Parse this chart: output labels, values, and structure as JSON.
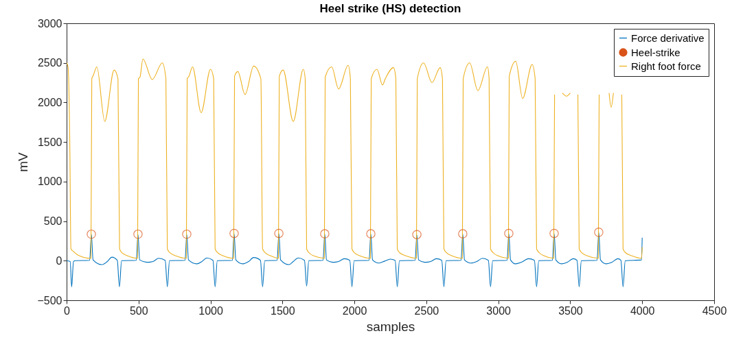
{
  "chart_data": {
    "type": "line",
    "title": "Heel strike (HS) detection",
    "xlabel": "samples",
    "ylabel": "mV",
    "xlim": [
      0,
      4500
    ],
    "xticks": [
      0,
      500,
      1000,
      1500,
      2000,
      2500,
      3000,
      3500,
      4000,
      4500
    ],
    "ylim": [
      -500,
      3000
    ],
    "yticks": [
      -500,
      0,
      500,
      1000,
      1500,
      2000,
      2500,
      3000
    ],
    "grid": false,
    "legend": "top right",
    "series": [
      {
        "name": "Force derivative",
        "type": "line",
        "color": "#0072bd",
        "x": [
          0,
          25,
          35,
          48,
          60,
          160,
          172,
          184,
          245,
          280,
          315,
          352,
          367,
          382,
          484,
          496,
          508,
          560,
          600,
          640,
          685,
          700,
          715,
          823,
          835,
          847,
          905,
          940,
          975,
          1017,
          1032,
          1047,
          1152,
          1164,
          1176,
          1225,
          1265,
          1300,
          1347,
          1362,
          1377,
          1463,
          1475,
          1487,
          1545,
          1575,
          1610,
          1653,
          1668,
          1683,
          1782,
          1794,
          1806,
          1850,
          1890,
          1930,
          1968,
          1983,
          1998,
          2102,
          2114,
          2126,
          2170,
          2210,
          2250,
          2283,
          2298,
          2313,
          2422,
          2434,
          2446,
          2490,
          2530,
          2570,
          2607,
          2622,
          2637,
          2741,
          2753,
          2765,
          2810,
          2850,
          2890,
          2931,
          2946,
          2961,
          3061,
          3073,
          3085,
          3120,
          3160,
          3210,
          3251,
          3266,
          3281,
          3376,
          3388,
          3400,
          3440,
          3480,
          3520,
          3547,
          3562,
          3577,
          3686,
          3698,
          3710,
          3750,
          3790,
          3830,
          3852,
          3867,
          3882,
          3995,
          4000
        ],
        "values": [
          0,
          -10,
          -330,
          -10,
          0,
          5,
          330,
          10,
          -50,
          -15,
          45,
          5,
          -330,
          0,
          5,
          330,
          10,
          -20,
          -10,
          30,
          5,
          -330,
          0,
          5,
          330,
          10,
          -40,
          -10,
          35,
          5,
          -330,
          0,
          5,
          340,
          10,
          -40,
          -10,
          40,
          5,
          -330,
          0,
          5,
          340,
          10,
          -50,
          -10,
          35,
          5,
          -320,
          0,
          5,
          335,
          10,
          -20,
          -10,
          25,
          5,
          -330,
          0,
          5,
          335,
          10,
          -30,
          -5,
          20,
          5,
          -330,
          0,
          5,
          325,
          10,
          -20,
          -10,
          25,
          5,
          -330,
          0,
          5,
          335,
          10,
          -30,
          -10,
          30,
          5,
          -330,
          0,
          5,
          340,
          10,
          -40,
          -20,
          25,
          5,
          -330,
          0,
          5,
          340,
          10,
          -40,
          -20,
          25,
          5,
          -330,
          0,
          5,
          355,
          10,
          -40,
          -20,
          25,
          5,
          -330,
          0,
          10,
          290
        ]
      },
      {
        "name": "Heel-strike",
        "type": "scatter",
        "marker": "circle",
        "color": "#d95319",
        "x": [
          172,
          496,
          835,
          1164,
          1475,
          1794,
          2114,
          2434,
          2753,
          3073,
          3388,
          3698
        ],
        "values": [
          335,
          335,
          335,
          345,
          345,
          340,
          340,
          330,
          340,
          345,
          345,
          360
        ]
      },
      {
        "name": "Right foot force",
        "type": "line",
        "color": "#edb120",
        "x": [
          0,
          10,
          22,
          30,
          45,
          80,
          169,
          175,
          185,
          210,
          265,
          330,
          357,
          368,
          385,
          425,
          493,
          499,
          510,
          530,
          595,
          665,
          690,
          700,
          718,
          760,
          832,
          838,
          850,
          875,
          935,
          1000,
          1022,
          1032,
          1050,
          1090,
          1161,
          1167,
          1190,
          1240,
          1300,
          1350,
          1362,
          1380,
          1420,
          1472,
          1478,
          1505,
          1575,
          1645,
          1658,
          1668,
          1685,
          1720,
          1791,
          1797,
          1842,
          1890,
          1957,
          1972,
          1983,
          2000,
          2040,
          2111,
          2117,
          2157,
          2195,
          2215,
          2272,
          2288,
          2298,
          2315,
          2360,
          2431,
          2437,
          2481,
          2539,
          2596,
          2612,
          2622,
          2640,
          2680,
          2750,
          2756,
          2801,
          2858,
          2925,
          2936,
          2946,
          2965,
          3000,
          3070,
          3076,
          3121,
          3169,
          3235,
          3256,
          3266,
          3285,
          3320,
          3385,
          3391,
          3420,
          3445,
          3474,
          3500,
          3520,
          3553,
          3562,
          3580,
          3620,
          3695,
          3701,
          3740,
          3770,
          3784,
          3800,
          3830,
          3858,
          3867,
          3885,
          3930,
          3995,
          4000
        ],
        "values": [
          2500,
          2450,
          1500,
          150,
          120,
          70,
          30,
          2300,
          2340,
          2450,
          1760,
          2410,
          2300,
          150,
          100,
          60,
          30,
          2300,
          2320,
          2550,
          2290,
          2500,
          2300,
          150,
          100,
          60,
          30,
          2300,
          2330,
          2450,
          1870,
          2420,
          2300,
          150,
          100,
          60,
          30,
          2330,
          2390,
          2100,
          2460,
          2300,
          150,
          100,
          60,
          30,
          2330,
          2410,
          1760,
          2420,
          2300,
          150,
          100,
          60,
          30,
          2320,
          2450,
          2170,
          2470,
          2300,
          150,
          100,
          60,
          30,
          2300,
          2420,
          2220,
          2300,
          2440,
          2300,
          150,
          100,
          60,
          30,
          2300,
          2500,
          2250,
          2440,
          2300,
          150,
          100,
          60,
          30,
          2300,
          2500,
          2150,
          2450,
          2300,
          150,
          100,
          60,
          30,
          2330,
          2520,
          2050,
          2480,
          2300,
          150,
          100,
          60,
          30,
          2100,
          null,
          2120,
          2080,
          2120,
          null,
          2100,
          150,
          100,
          60,
          30,
          2100,
          null,
          2120,
          1940,
          2120,
          null,
          2100,
          150,
          100,
          60,
          30,
          170
        ]
      }
    ]
  }
}
